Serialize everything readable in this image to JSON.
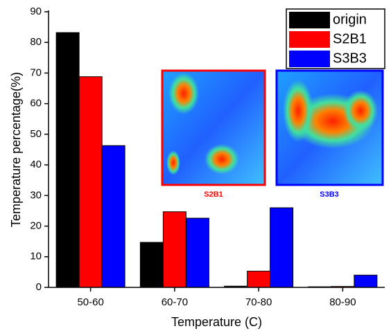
{
  "chart_data": {
    "type": "bar",
    "xlabel": "Temperature (C)",
    "ylabel": "Temperature percentage(%)",
    "categories": [
      "50-60",
      "60-70",
      "70-80",
      "80-90"
    ],
    "series": [
      {
        "name": "origin",
        "color": "#000000",
        "values": [
          83.2,
          14.7,
          0.4,
          0.2
        ]
      },
      {
        "name": "S2B1",
        "color": "#ff0000",
        "values": [
          68.8,
          24.7,
          5.3,
          0.3
        ]
      },
      {
        "name": "S3B3",
        "color": "#0000ff",
        "values": [
          46.3,
          22.6,
          26.0,
          4.0
        ]
      }
    ],
    "ylim": [
      0,
      90
    ],
    "yticks": [
      0,
      10,
      20,
      30,
      40,
      50,
      60,
      70,
      80,
      90
    ],
    "legend": "upper right",
    "insets": [
      {
        "label": "S2B1",
        "color": "#ff0000"
      },
      {
        "label": "S3B3",
        "color": "#0000ff"
      }
    ]
  }
}
